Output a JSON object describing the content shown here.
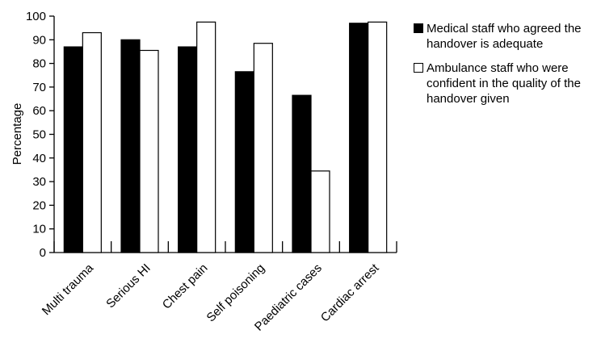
{
  "chart_data": {
    "type": "bar",
    "title": "",
    "xlabel": "",
    "ylabel": "Percentage",
    "ylim": [
      0,
      100
    ],
    "yticks": [
      0,
      10,
      20,
      30,
      40,
      50,
      60,
      70,
      80,
      90,
      100
    ],
    "grid": false,
    "legend_position": "top-right",
    "categories": [
      "Multi trauma",
      "Serious HI",
      "Chest pain",
      "Self poisoning",
      "Paediatric cases",
      "Cardiac arrest"
    ],
    "series": [
      {
        "name": "Medical staff who agreed the handover is adequate",
        "color": "#000000",
        "values": [
          87,
          90,
          87,
          76.5,
          66.5,
          97
        ]
      },
      {
        "name": "Ambulance staff who were confident in the quality of the handover given",
        "color": "#ffffff",
        "values": [
          93,
          85.5,
          97.5,
          88.5,
          34.5,
          97.5
        ]
      }
    ]
  }
}
